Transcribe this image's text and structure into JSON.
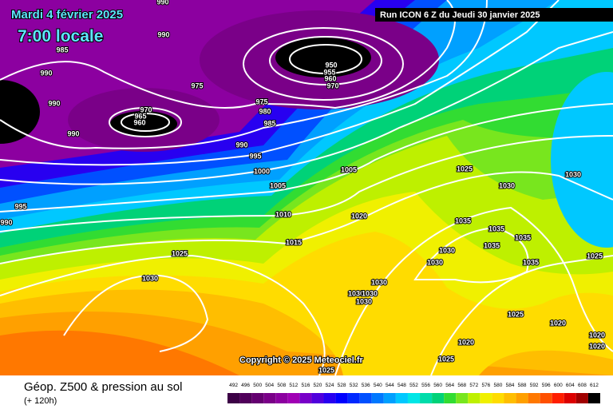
{
  "header": {
    "date": "Mardi 4 février 2025",
    "time": "7:00 locale",
    "run": "Run ICON 6 Z du Jeudi 30 janvier 2025"
  },
  "isobars": {
    "labels": [
      990,
      990,
      985,
      990,
      990,
      975,
      970,
      965,
      960,
      950,
      955,
      960,
      970,
      975,
      980,
      985,
      990,
      990,
      995,
      1000,
      1005,
      1005,
      995,
      990,
      1010,
      1015,
      1025,
      1030,
      1020,
      1025,
      1030,
      1030,
      1035,
      1035,
      1035,
      1035,
      1030,
      1030,
      1035,
      1025,
      1030,
      1030,
      1030,
      1030,
      1025,
      1020,
      1020,
      1020,
      1020,
      1025,
      1025
    ]
  },
  "copyright": "Copyright © 2025 Meteociel.fr",
  "footer": {
    "title": "Géop. Z500 & pression au sol",
    "lead": "(+ 120h)"
  },
  "scale": {
    "values": [
      492,
      496,
      500,
      504,
      508,
      512,
      516,
      520,
      524,
      528,
      532,
      536,
      540,
      544,
      548,
      552,
      556,
      560,
      564,
      568,
      572,
      576,
      580,
      584,
      588,
      592,
      596,
      600,
      604,
      608,
      612
    ],
    "colors": [
      "#3c0046",
      "#50005a",
      "#640070",
      "#7a0088",
      "#8c00a0",
      "#a000b4",
      "#7800c8",
      "#5000dc",
      "#2800f0",
      "#0000ff",
      "#0028ff",
      "#0050ff",
      "#0078ff",
      "#00a0ff",
      "#00c8ff",
      "#00e6e6",
      "#00dcaa",
      "#00d278",
      "#32dc32",
      "#78e61e",
      "#bef000",
      "#f0f000",
      "#ffdc00",
      "#ffbe00",
      "#ffa000",
      "#ff7800",
      "#ff5000",
      "#ff1e00",
      "#dc0000",
      "#a00000",
      "#000000"
    ]
  }
}
